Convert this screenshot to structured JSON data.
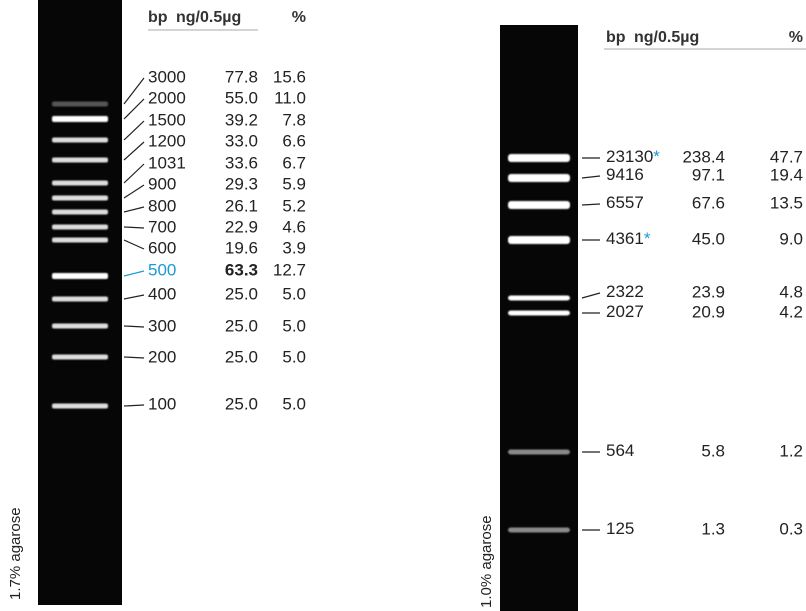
{
  "left": {
    "caption": "1.7% agarose",
    "header": {
      "bp": "bp",
      "ng": "ng/0.5µg",
      "pct": "%"
    },
    "rows": [
      {
        "bp": "3000",
        "ng": "77.8",
        "pct": "15.6"
      },
      {
        "bp": "2000",
        "ng": "55.0",
        "pct": "11.0"
      },
      {
        "bp": "1500",
        "ng": "39.2",
        "pct": "7.8"
      },
      {
        "bp": "1200",
        "ng": "33.0",
        "pct": "6.6"
      },
      {
        "bp": "1031",
        "ng": "33.6",
        "pct": "6.7"
      },
      {
        "bp": "900",
        "ng": "29.3",
        "pct": "5.9"
      },
      {
        "bp": "800",
        "ng": "26.1",
        "pct": "5.2"
      },
      {
        "bp": "700",
        "ng": "22.9",
        "pct": "4.6"
      },
      {
        "bp": "600",
        "ng": "19.6",
        "pct": "3.9"
      },
      {
        "bp": "500",
        "ng": "63.3",
        "pct": "12.7"
      },
      {
        "bp": "400",
        "ng": "25.0",
        "pct": "5.0"
      },
      {
        "bp": "300",
        "ng": "25.0",
        "pct": "5.0"
      },
      {
        "bp": "200",
        "ng": "25.0",
        "pct": "5.0"
      },
      {
        "bp": "100",
        "ng": "25.0",
        "pct": "5.0"
      }
    ]
  },
  "right": {
    "caption": "1.0% agarose",
    "header": {
      "bp": "bp",
      "ng": "ng/0.5µg",
      "pct": "%"
    },
    "rows": [
      {
        "bp": "23130",
        "star": "*",
        "ng": "238.4",
        "pct": "47.7"
      },
      {
        "bp": "9416",
        "ng": "97.1",
        "pct": "19.4"
      },
      {
        "bp": "6557",
        "ng": "67.6",
        "pct": "13.5"
      },
      {
        "bp": "4361",
        "star": "*",
        "ng": "45.0",
        "pct": "9.0"
      },
      {
        "bp": "2322",
        "ng": "23.9",
        "pct": "4.8"
      },
      {
        "bp": "2027",
        "ng": "20.9",
        "pct": "4.2"
      },
      {
        "bp": "564",
        "ng": "5.8",
        "pct": "1.2"
      },
      {
        "bp": "125",
        "ng": "1.3",
        "pct": "0.3"
      }
    ]
  }
}
